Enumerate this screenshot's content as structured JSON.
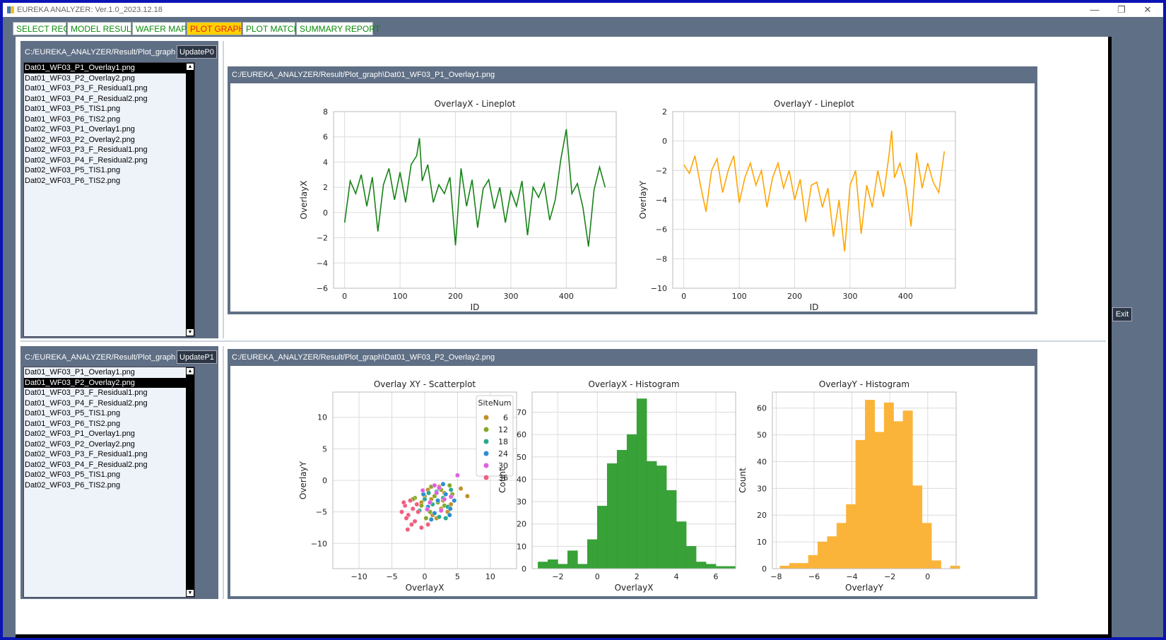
{
  "window": {
    "title": "EUREKA ANALYZER: Ver.1.0_2023.12.18",
    "controls": [
      "—",
      "❐",
      "✕"
    ]
  },
  "tabs": [
    {
      "label": "SELECT REG"
    },
    {
      "label": "MODEL RESULT"
    },
    {
      "label": "WAFER MAP"
    },
    {
      "label": "PLOT GRAPH",
      "active": true
    },
    {
      "label": "PLOT MATCH"
    },
    {
      "label": "SUMMARY REPORT"
    }
  ],
  "top_panel": {
    "folder": "C:/EUREKA_ANALYZER/Result/Plot_graph",
    "update_label": "UpdateP0",
    "files": [
      "Dat01_WF03_P1_Overlay1.png",
      "Dat01_WF03_P2_Overlay2.png",
      "Dat01_WF03_P3_F_Residual1.png",
      "Dat01_WF03_P4_F_Residual2.png",
      "Dat01_WF03_P5_TIS1.png",
      "Dat01_WF03_P6_TIS2.png",
      "Dat02_WF03_P1_Overlay1.png",
      "Dat02_WF03_P2_Overlay2.png",
      "Dat02_WF03_P3_F_Residual1.png",
      "Dat02_WF03_P4_F_Residual2.png",
      "Dat02_WF03_P5_TIS1.png",
      "Dat02_WF03_P6_TIS2.png"
    ],
    "selected_index": 0,
    "image_path": "C:/EUREKA_ANALYZER/Result/Plot_graph\\Dat01_WF03_P1_Overlay1.png"
  },
  "bottom_panel": {
    "folder": "C:/EUREKA_ANALYZER/Result/Plot_graph",
    "update_label": "UpdateP1",
    "files": [
      "Dat01_WF03_P1_Overlay1.png",
      "Dat01_WF03_P2_Overlay2.png",
      "Dat01_WF03_P3_F_Residual1.png",
      "Dat01_WF03_P4_F_Residual2.png",
      "Dat01_WF03_P5_TIS1.png",
      "Dat01_WF03_P6_TIS2.png",
      "Dat02_WF03_P1_Overlay1.png",
      "Dat02_WF03_P2_Overlay2.png",
      "Dat02_WF03_P3_F_Residual1.png",
      "Dat02_WF03_P4_F_Residual2.png",
      "Dat02_WF03_P5_TIS1.png",
      "Dat02_WF03_P6_TIS2.png"
    ],
    "selected_index": 1,
    "image_path": "C:/EUREKA_ANALYZER/Result/Plot_graph\\Dat01_WF03_P2_Overlay2.png"
  },
  "exit_label": "Exit",
  "colors": {
    "green": "#168216",
    "orange": "#ffa500",
    "hist_green": "#2e9e2e",
    "hist_orange": "#fbb030",
    "selected_tab": "#ffd000",
    "panel": "#5f6f85"
  },
  "chart_data": [
    {
      "type": "line",
      "title": "OverlayX - Lineplot",
      "xlabel": "ID",
      "ylabel": "OverlayX",
      "xlim": [
        -20,
        490
      ],
      "ylim": [
        -6,
        8
      ],
      "xticks": [
        0,
        100,
        200,
        300,
        400
      ],
      "yticks": [
        -6,
        -4,
        -2,
        0,
        2,
        4,
        6,
        8
      ],
      "grid": true,
      "color": "#168216",
      "x": [
        0,
        10,
        20,
        30,
        40,
        50,
        60,
        70,
        80,
        90,
        100,
        110,
        120,
        130,
        135,
        140,
        150,
        160,
        170,
        180,
        190,
        200,
        210,
        220,
        230,
        240,
        250,
        260,
        270,
        280,
        290,
        300,
        310,
        320,
        330,
        340,
        350,
        360,
        370,
        380,
        390,
        400,
        410,
        420,
        430,
        440,
        450,
        460,
        470
      ],
      "y": [
        -0.8,
        2.5,
        1.5,
        3.0,
        0.5,
        2.8,
        -1.5,
        2.2,
        3.5,
        1.0,
        3.2,
        0.8,
        3.8,
        4.5,
        5.9,
        2.5,
        3.8,
        0.8,
        2.2,
        1.5,
        2.8,
        -2.6,
        3.5,
        0.5,
        2.6,
        -1.2,
        1.9,
        2.6,
        0.3,
        2.0,
        -0.8,
        1.7,
        0.5,
        2.5,
        -1.8,
        2.0,
        1.2,
        2.3,
        -0.6,
        1.0,
        4.2,
        6.6,
        1.5,
        2.3,
        0.4,
        -2.7,
        1.8,
        3.6,
        2.0
      ]
    },
    {
      "type": "line",
      "title": "OverlayY - Lineplot",
      "xlabel": "ID",
      "ylabel": "OverlayY",
      "xlim": [
        -20,
        490
      ],
      "ylim": [
        -10,
        2
      ],
      "xticks": [
        0,
        100,
        200,
        300,
        400
      ],
      "yticks": [
        -10,
        -8,
        -6,
        -4,
        -2,
        0,
        2
      ],
      "grid": true,
      "color": "#ffa500",
      "x": [
        0,
        10,
        20,
        30,
        40,
        50,
        60,
        70,
        80,
        90,
        100,
        110,
        120,
        130,
        140,
        150,
        160,
        170,
        180,
        190,
        200,
        210,
        220,
        230,
        240,
        250,
        260,
        270,
        280,
        290,
        300,
        310,
        320,
        330,
        340,
        350,
        360,
        370,
        375,
        380,
        390,
        400,
        410,
        420,
        430,
        440,
        450,
        460,
        470
      ],
      "y": [
        -1.6,
        -2.2,
        -1.0,
        -3.0,
        -4.8,
        -2.0,
        -1.2,
        -3.5,
        -2.0,
        -1.0,
        -4.2,
        -2.5,
        -1.5,
        -3.0,
        -2.0,
        -4.5,
        -2.5,
        -1.5,
        -3.2,
        -2.0,
        -4.0,
        -2.6,
        -5.5,
        -3.0,
        -2.8,
        -4.5,
        -3.2,
        -6.5,
        -4.0,
        -7.5,
        -3.0,
        -2.0,
        -6.3,
        -3.0,
        -4.5,
        -2.0,
        -3.8,
        -1.0,
        0.7,
        -2.5,
        -1.5,
        -3.0,
        -5.8,
        -0.8,
        -3.2,
        -1.5,
        -2.8,
        -3.5,
        -0.7
      ]
    },
    {
      "type": "scatter",
      "title": "Overlay XY - Scatterplot",
      "xlabel": "OverlayX",
      "ylabel": "OverlayY",
      "xlim": [
        -14,
        14
      ],
      "ylim": [
        -14,
        14
      ],
      "xticks": [
        -10,
        -5,
        0,
        5,
        10
      ],
      "yticks": [
        -10,
        -5,
        0,
        5,
        10
      ],
      "grid": true,
      "legend_title": "SiteNum",
      "legend_position": "top-right",
      "series": [
        {
          "name": "6",
          "color": "#c0922a",
          "points": [
            [
              1.0,
              -3.0
            ],
            [
              2.5,
              -4.5
            ],
            [
              0.5,
              -1.5
            ],
            [
              3.0,
              -2.0
            ],
            [
              1.8,
              -6.0
            ],
            [
              -0.5,
              -3.5
            ],
            [
              2.2,
              -1.0
            ],
            [
              4.0,
              -3.8
            ],
            [
              1.2,
              -5.5
            ],
            [
              3.5,
              -5.0
            ],
            [
              6.5,
              -2.5
            ],
            [
              0.0,
              -2.5
            ],
            [
              2.8,
              -3.2
            ],
            [
              5.5,
              -1.3
            ]
          ]
        },
        {
          "name": "12",
          "color": "#88a82a",
          "points": [
            [
              1.5,
              -2.5
            ],
            [
              -0.5,
              -4.0
            ],
            [
              2.5,
              -1.5
            ],
            [
              0.8,
              -5.0
            ],
            [
              3.0,
              -4.0
            ],
            [
              -1.5,
              -2.8
            ],
            [
              2.0,
              -3.5
            ],
            [
              1.0,
              -1.0
            ],
            [
              4.2,
              -2.2
            ],
            [
              0.2,
              -6.0
            ],
            [
              3.8,
              -0.8
            ],
            [
              -1.8,
              -3.0
            ]
          ]
        },
        {
          "name": "18",
          "color": "#2aa890",
          "points": [
            [
              1.2,
              -3.8
            ],
            [
              2.8,
              -2.8
            ],
            [
              0.0,
              -3.0
            ],
            [
              3.5,
              -4.2
            ],
            [
              1.8,
              -1.8
            ],
            [
              -0.8,
              -4.8
            ],
            [
              2.2,
              -5.8
            ],
            [
              4.0,
              -1.5
            ],
            [
              0.6,
              -2.0
            ],
            [
              3.2,
              -6.0
            ]
          ]
        },
        {
          "name": "24",
          "color": "#2a8fd0",
          "points": [
            [
              2.0,
              -3.2
            ],
            [
              0.5,
              -4.2
            ],
            [
              3.2,
              -2.2
            ],
            [
              1.5,
              -5.2
            ],
            [
              -0.2,
              -2.2
            ],
            [
              4.5,
              -3.2
            ],
            [
              2.8,
              -0.6
            ],
            [
              3.8,
              -5.5
            ],
            [
              1.0,
              -6.2
            ],
            [
              3.9,
              -4.5
            ]
          ]
        },
        {
          "name": "30",
          "color": "#e060e0",
          "points": [
            [
              1.8,
              -2.0
            ],
            [
              3.0,
              -3.0
            ],
            [
              0.8,
              -3.5
            ],
            [
              2.5,
              -4.8
            ],
            [
              -0.3,
              -1.6
            ],
            [
              4.0,
              -2.6
            ],
            [
              1.5,
              -0.8
            ],
            [
              5.0,
              0.8
            ],
            [
              2.2,
              -1.2
            ],
            [
              0.4,
              -4.6
            ]
          ]
        },
        {
          "name": "36",
          "color": "#f06080",
          "points": [
            [
              -2.5,
              -5.5
            ],
            [
              -1.5,
              -6.5
            ],
            [
              -3.0,
              -4.0
            ],
            [
              -2.0,
              -7.0
            ],
            [
              -1.0,
              -5.0
            ],
            [
              -3.2,
              -3.5
            ],
            [
              -0.5,
              -7.5
            ],
            [
              -2.8,
              -6.0
            ],
            [
              -1.8,
              -4.5
            ],
            [
              -3.5,
              -5.0
            ],
            [
              -2.2,
              -3.2
            ],
            [
              0.5,
              -7.0
            ],
            [
              -1.2,
              -3.8
            ],
            [
              -2.6,
              -7.8
            ]
          ]
        }
      ]
    },
    {
      "type": "bar",
      "title": "OverlayX - Histogram",
      "xlabel": "OverlayX",
      "ylabel": "Count",
      "xlim": [
        -3.3,
        7.0
      ],
      "ylim": [
        0,
        79
      ],
      "xticks": [
        -2,
        0,
        2,
        4,
        6
      ],
      "yticks": [
        0,
        10,
        20,
        30,
        40,
        50,
        60,
        70
      ],
      "grid": true,
      "color": "#2e9e2e",
      "bin_start": -3.0,
      "bin_width": 0.5,
      "values": [
        3,
        4,
        2,
        8,
        2,
        13,
        28,
        47,
        53,
        60,
        76,
        48,
        46,
        35,
        21,
        10,
        3,
        2,
        1,
        1
      ]
    },
    {
      "type": "bar",
      "title": "OverlayY - Histogram",
      "xlabel": "OverlayY",
      "ylabel": "Count",
      "xlim": [
        -8.2,
        1.5
      ],
      "ylim": [
        0,
        66
      ],
      "xticks": [
        -8,
        -6,
        -4,
        -2,
        0
      ],
      "yticks": [
        0,
        10,
        20,
        30,
        40,
        50,
        60
      ],
      "grid": true,
      "color": "#fbb030",
      "bin_start": -7.8,
      "bin_width": 0.5,
      "values": [
        1,
        2,
        2,
        5,
        10,
        12,
        17,
        24,
        48,
        63,
        51,
        62,
        55,
        59,
        31,
        17,
        3,
        0,
        1
      ]
    }
  ]
}
